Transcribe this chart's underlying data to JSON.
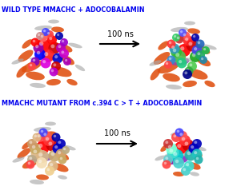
{
  "title1": "WILD TYPE MMACHC + ADOCOBALAMIN",
  "title2": "MMACHC MUTANT FROM c.394 C > T + ADOCOBALAMIN",
  "arrow_label": "100 ns",
  "title_color": "#0000EE",
  "title_fontsize": 5.8,
  "arrow_label_fontsize": 7.0,
  "background_color": "#FFFFFF",
  "fig_width": 3.01,
  "fig_height": 2.43,
  "dpi": 100
}
